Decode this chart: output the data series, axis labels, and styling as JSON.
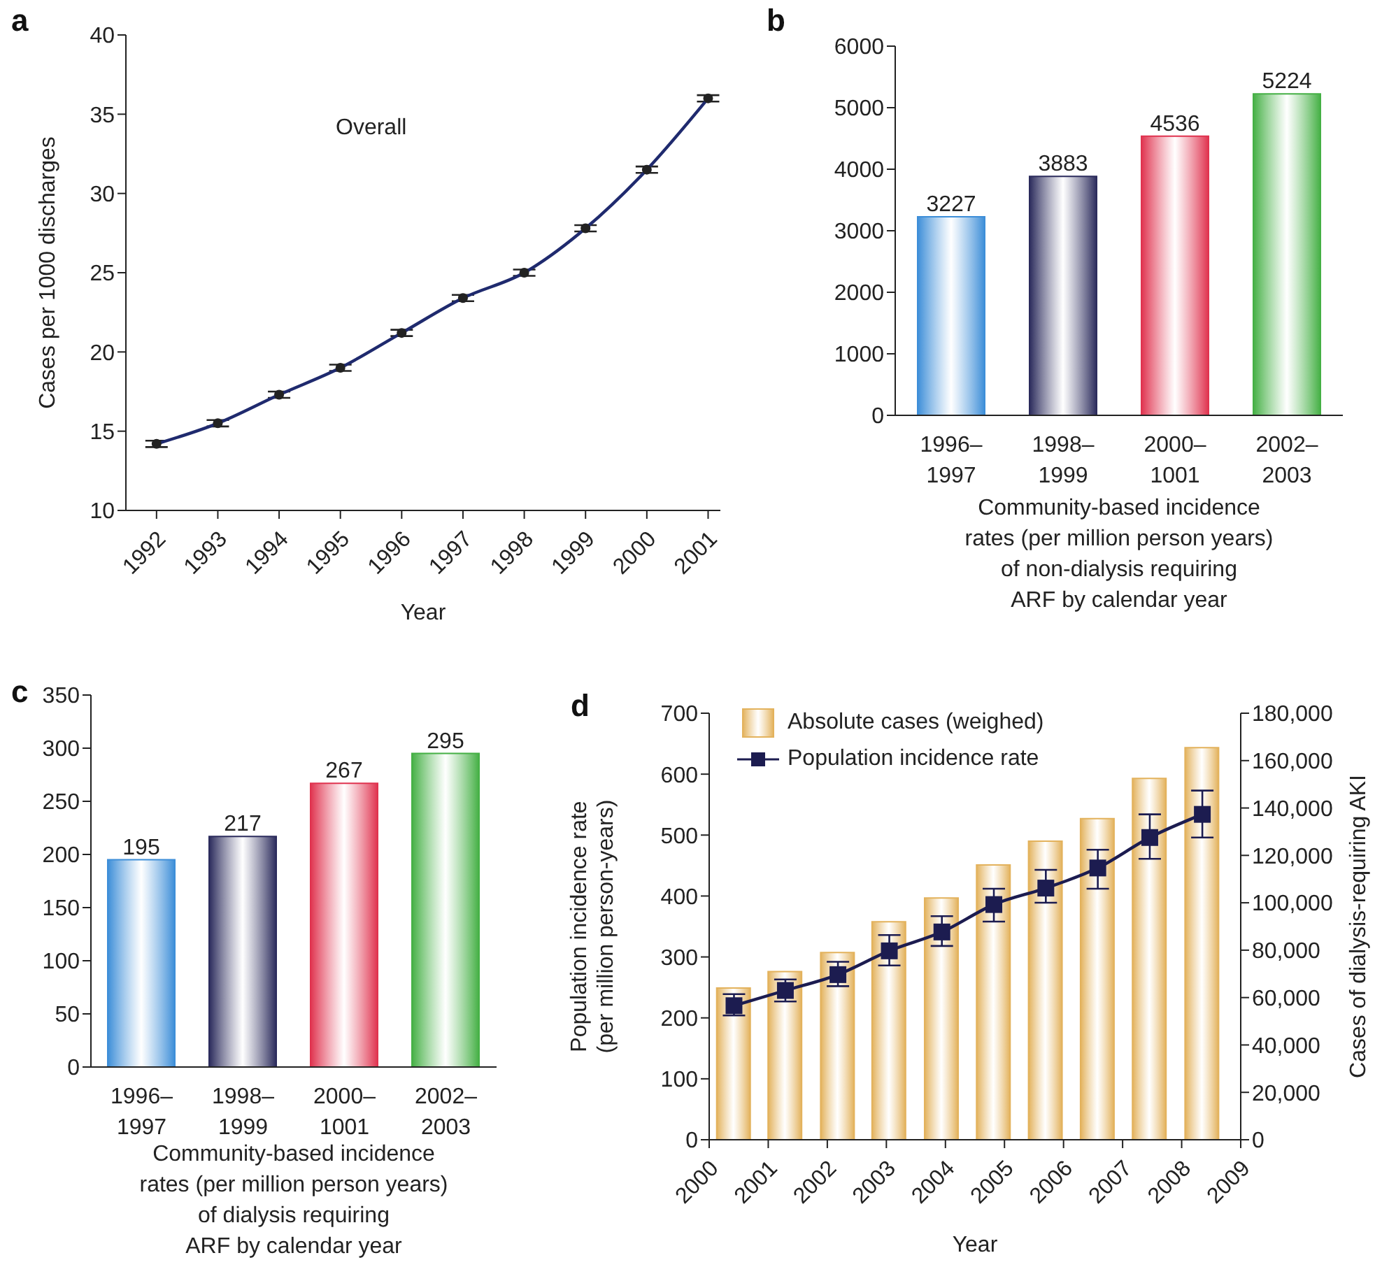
{
  "chart_data": [
    {
      "type": "line",
      "title": "a",
      "annotations": [
        "Overall"
      ],
      "x": [
        1992,
        1993,
        1994,
        1995,
        1996,
        1997,
        1998,
        1999,
        2000,
        2001
      ],
      "xlim": [
        1991.5,
        2001.2
      ],
      "xticks": [
        1992,
        1993,
        1994,
        1995,
        1996,
        1997,
        1998,
        1999,
        2000,
        2001
      ],
      "ylim": [
        10,
        40
      ],
      "yticks": [
        10,
        15,
        20,
        25,
        30,
        35,
        40
      ],
      "xlabel": "Year",
      "ylabel": "Cases per 1000 discharges",
      "marker": "circle",
      "series": [
        {
          "color": "#1f2a6e",
          "values": [
            14.2,
            15.5,
            17.3,
            19.0,
            21.2,
            23.4,
            25.0,
            27.8,
            31.5,
            36.0
          ],
          "errors": [
            0.2,
            0.2,
            0.2,
            0.2,
            0.2,
            0.2,
            0.2,
            0.2,
            0.2,
            0.2
          ]
        }
      ]
    },
    {
      "type": "bar",
      "title": "b",
      "categories": [
        "1996–\n1997",
        "1998–\n1999",
        "2000–\n1001",
        "2002–\n2003"
      ],
      "values": [
        3227,
        3883,
        4536,
        5224
      ],
      "colors": [
        "#3d8ed8",
        "#2b2b5c",
        "#e0334f",
        "#45b045"
      ],
      "data_labels": true,
      "ylim": [
        0,
        6000
      ],
      "yticks": [
        0,
        1000,
        2000,
        3000,
        4000,
        5000,
        6000
      ],
      "xlabel": "Community-based incidence\nrates (per million person years)\nof non-dialysis requiring\nARF by calendar year"
    },
    {
      "type": "bar",
      "title": "c",
      "categories": [
        "1996–\n1997",
        "1998–\n1999",
        "2000–\n1001",
        "2002–\n2003"
      ],
      "values": [
        195,
        217,
        267,
        295
      ],
      "colors": [
        "#3d8ed8",
        "#2b2b5c",
        "#e0334f",
        "#45b045"
      ],
      "data_labels": true,
      "ylim": [
        0,
        350
      ],
      "yticks": [
        0,
        50,
        100,
        150,
        200,
        250,
        300,
        350
      ],
      "xlabel": "Community-based incidence\nrates (per million person years)\nof dialysis requiring\nARF by calendar year"
    },
    {
      "type": "bar",
      "title": "d",
      "x": [
        2000.42,
        2001.29,
        2002.18,
        2003.05,
        2003.94,
        2004.82,
        2005.7,
        2006.58,
        2007.46,
        2008.35
      ],
      "xlim": [
        2000,
        2009
      ],
      "xticks": [
        2000,
        2001,
        2002,
        2003,
        2004,
        2005,
        2006,
        2007,
        2008,
        2009
      ],
      "xlabel": "Year",
      "ylabel": "Population incidence rate\n(per million person-years)",
      "y2label": "Cases of dialysis-requiring AKI",
      "ylim": [
        0,
        700
      ],
      "yticks": [
        0,
        100,
        200,
        300,
        400,
        500,
        600,
        700
      ],
      "y2lim": [
        0,
        180000
      ],
      "y2ticks": [
        0,
        {
          "value": 20000,
          "label": "20,000"
        },
        {
          "value": 40000,
          "label": "40,000"
        },
        {
          "value": 60000,
          "label": "60,000"
        },
        {
          "value": 80000,
          "label": "80,000"
        },
        {
          "value": 100000,
          "label": "100,000"
        },
        {
          "value": 120000,
          "label": "120,000"
        },
        {
          "value": 140000,
          "label": "140,000"
        },
        {
          "value": 160000,
          "label": "160,000"
        },
        {
          "value": 180000,
          "label": "180,000"
        }
      ],
      "legend": "top left",
      "marker": "square",
      "series": [
        {
          "name": "Absolute cases (weighed)",
          "type": "bar",
          "axis": "y2",
          "color": "#e3b25c",
          "values": [
            64000,
            71000,
            79000,
            92000,
            102000,
            116000,
            126000,
            135500,
            152500,
            165500
          ]
        },
        {
          "name": "Population incidence rate",
          "type": "line",
          "color": "#1c1c50",
          "values": [
            220,
            245,
            271,
            310,
            341,
            386,
            413,
            446,
            496,
            534
          ],
          "errors": [
            [
              204,
              239
            ],
            [
              227,
              263
            ],
            [
              252,
              292
            ],
            [
              286,
              336
            ],
            [
              318,
              367
            ],
            [
              358,
              412
            ],
            [
              389,
              443
            ],
            [
              412,
              476
            ],
            [
              461,
              534
            ],
            [
              496,
              573
            ]
          ]
        }
      ]
    }
  ]
}
